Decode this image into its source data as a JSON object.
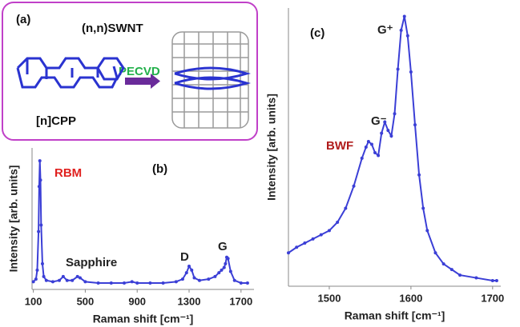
{
  "diagram": {
    "label": "(a)",
    "product": "(n,n)SWNT",
    "process": "PECVD",
    "precursor": "[n]CPP"
  },
  "chart_data": [
    {
      "type": "line",
      "title": "(b)",
      "x_label": "Raman shift [cm⁻¹]",
      "y_label": "Intensity [arb. units]",
      "annotations": [
        "RBM",
        "Sapphire",
        "D",
        "G"
      ],
      "x": [
        100,
        120,
        130,
        140,
        145,
        150,
        155,
        160,
        170,
        180,
        200,
        250,
        300,
        330,
        360,
        400,
        440,
        460,
        500,
        600,
        700,
        800,
        860,
        900,
        1000,
        1100,
        1200,
        1250,
        1280,
        1300,
        1320,
        1340,
        1380,
        1450,
        1500,
        1530,
        1550,
        1570,
        1580,
        1590,
        1600,
        1620,
        1650,
        1700,
        1750
      ],
      "series": [
        {
          "color": "#3b3fd6",
          "values": [
            0.06,
            0.08,
            0.15,
            0.45,
            0.8,
            1.0,
            0.85,
            0.5,
            0.2,
            0.1,
            0.07,
            0.06,
            0.07,
            0.1,
            0.07,
            0.07,
            0.1,
            0.09,
            0.06,
            0.05,
            0.05,
            0.05,
            0.06,
            0.05,
            0.05,
            0.05,
            0.06,
            0.08,
            0.13,
            0.18,
            0.15,
            0.09,
            0.07,
            0.08,
            0.1,
            0.13,
            0.15,
            0.17,
            0.2,
            0.25,
            0.24,
            0.14,
            0.07,
            0.05,
            0.05
          ]
        }
      ],
      "xlim": [
        90,
        1800
      ],
      "ylim": [
        0,
        1.1
      ],
      "xticks": [
        100,
        500,
        900,
        1300,
        1700
      ]
    },
    {
      "type": "line",
      "title": "(c)",
      "x_label": "Raman shift [cm⁻¹]",
      "y_label": "Intensity [arb. units]",
      "annotations": [
        "G⁺",
        "G⁻",
        "BWF"
      ],
      "x": [
        1450,
        1460,
        1470,
        1480,
        1490,
        1500,
        1510,
        1520,
        1530,
        1540,
        1545,
        1548,
        1552,
        1556,
        1560,
        1564,
        1568,
        1572,
        1576,
        1580,
        1584,
        1588,
        1592,
        1596,
        1600,
        1605,
        1610,
        1615,
        1620,
        1630,
        1640,
        1650,
        1660,
        1680,
        1700,
        1705
      ],
      "series": [
        {
          "color": "#3b3fd6",
          "values": [
            0.12,
            0.14,
            0.155,
            0.17,
            0.185,
            0.2,
            0.23,
            0.28,
            0.36,
            0.46,
            0.5,
            0.52,
            0.51,
            0.48,
            0.47,
            0.55,
            0.59,
            0.56,
            0.54,
            0.62,
            0.78,
            0.92,
            0.97,
            0.9,
            0.77,
            0.58,
            0.4,
            0.28,
            0.2,
            0.12,
            0.08,
            0.06,
            0.04,
            0.03,
            0.02,
            0.02
          ]
        }
      ],
      "xlim": [
        1450,
        1710
      ],
      "ylim": [
        0,
        1
      ],
      "xticks": [
        1500,
        1600,
        1700
      ]
    }
  ]
}
